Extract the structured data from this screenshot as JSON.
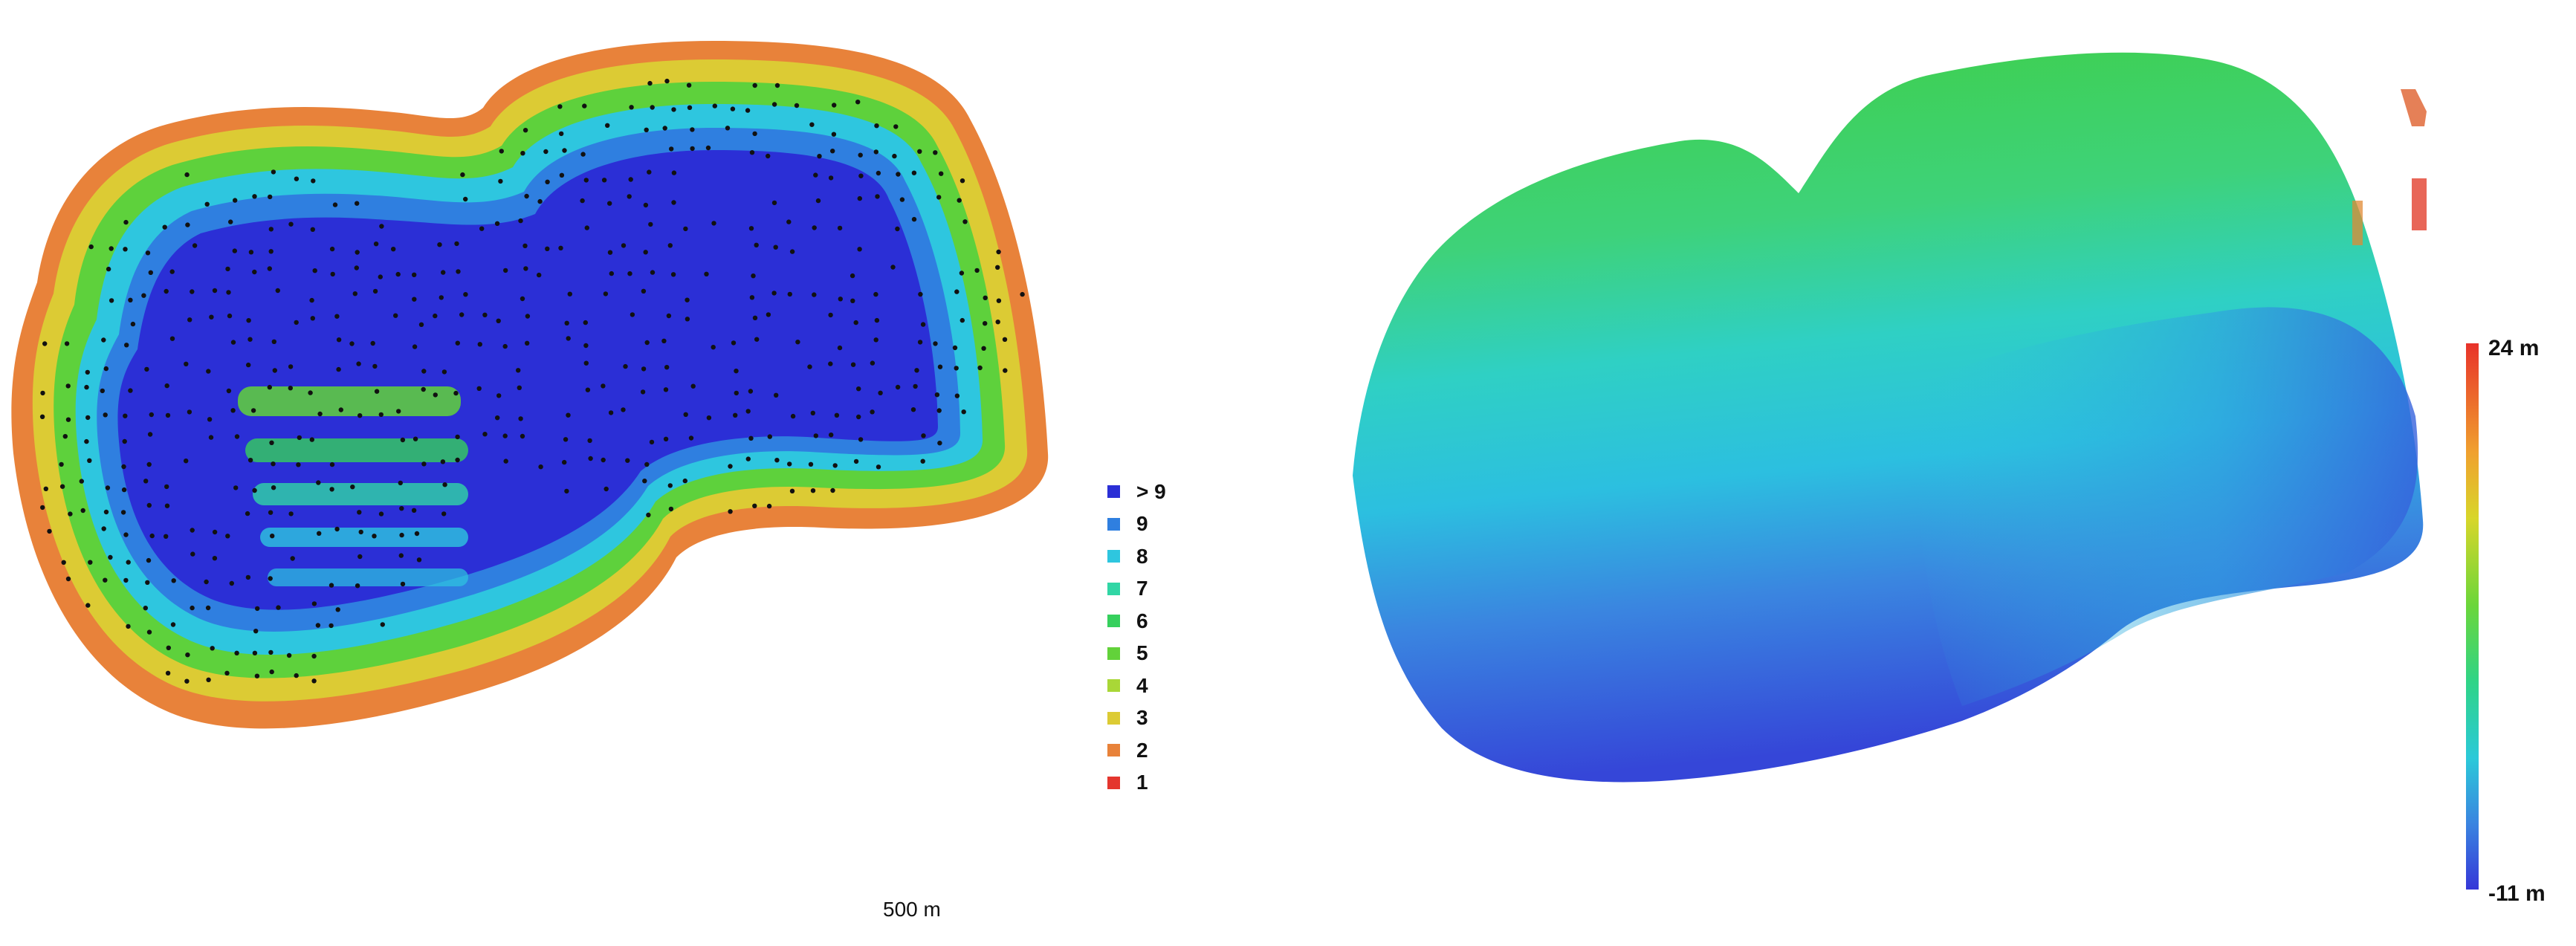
{
  "overlap_legend": {
    "items": [
      {
        "label": "> 9",
        "color": "#2b2fd6"
      },
      {
        "label": "9",
        "color": "#2f7fe0"
      },
      {
        "label": "8",
        "color": "#2ec6df"
      },
      {
        "label": "7",
        "color": "#31d6a5"
      },
      {
        "label": "6",
        "color": "#36d05d"
      },
      {
        "label": "5",
        "color": "#62d23a"
      },
      {
        "label": "4",
        "color": "#a9d737"
      },
      {
        "label": "3",
        "color": "#dccb34"
      },
      {
        "label": "2",
        "color": "#e8823a"
      },
      {
        "label": "1",
        "color": "#e4362e"
      }
    ]
  },
  "scale_bar": {
    "label": "500 m"
  },
  "dem_colorbar": {
    "max_label": "24 m",
    "min_label": "-11 m"
  }
}
